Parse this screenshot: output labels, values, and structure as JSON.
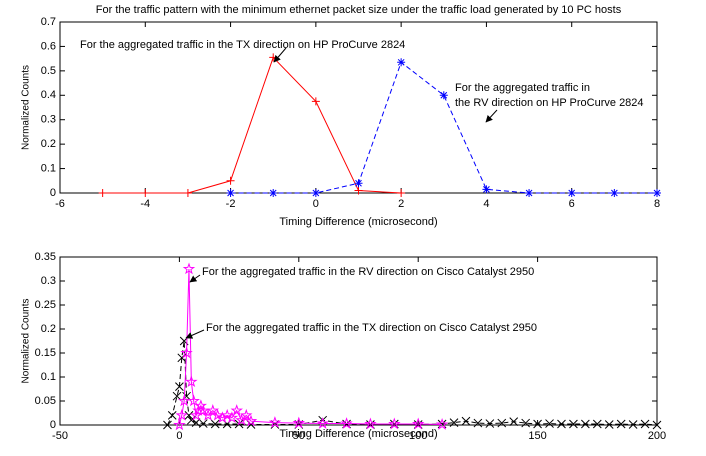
{
  "chart_data": [
    {
      "type": "line",
      "title": "For the traffic pattern with the minimum ethernet packet size under the traffic load generated by 10 PC hosts",
      "xlabel": "Timing Difference (microsecond)",
      "ylabel": "Normalized Counts",
      "xlim": [
        -6,
        8
      ],
      "xticks": [
        -6,
        -4,
        -2,
        0,
        2,
        4,
        6,
        8
      ],
      "ylim": [
        0,
        0.7
      ],
      "yticks": [
        0,
        0.1,
        0.2,
        0.3,
        0.4,
        0.5,
        0.6,
        0.7
      ],
      "grid": false,
      "annotations": [
        "For the aggregated traffic in the TX direction on HP ProCurve 2824",
        "For the aggregated traffic in",
        "the RV direction on HP ProCurve 2824"
      ],
      "series": [
        {
          "color": "#ff0000",
          "marker": "plus",
          "dashed": false,
          "x": [
            -5,
            -4,
            -3,
            -2,
            -1,
            0,
            1,
            2
          ],
          "values": [
            0,
            0,
            0,
            0.05,
            0.555,
            0.375,
            0.01,
            0
          ]
        },
        {
          "color": "#0000ff",
          "marker": "asterisk",
          "dashed": true,
          "x": [
            -2,
            -1,
            0,
            1,
            2,
            3,
            4,
            5,
            6,
            7,
            8
          ],
          "values": [
            0,
            0,
            0,
            0.04,
            0.535,
            0.4,
            0.015,
            0,
            0,
            0,
            0
          ]
        }
      ]
    },
    {
      "type": "line",
      "xlabel": "Timing Difference (microsecond)",
      "ylabel": "Normalized Counts",
      "xlim": [
        -50,
        200
      ],
      "xticks": [
        -50,
        0,
        50,
        100,
        150,
        200
      ],
      "ylim": [
        0,
        0.35
      ],
      "yticks": [
        0,
        0.05,
        0.1,
        0.15,
        0.2,
        0.25,
        0.3,
        0.35
      ],
      "grid": false,
      "annotations": [
        "For the aggregated traffic in the RV direction on Cisco Catalyst 2950",
        "For the aggregated traffic in the TX direction on Cisco Catalyst 2950"
      ],
      "series": [
        {
          "color": "#000000",
          "marker": "cross",
          "dashed": true,
          "x": [
            -5,
            -3,
            -1,
            0,
            1,
            2,
            3,
            4,
            5,
            7,
            10,
            15,
            20,
            25,
            30,
            40,
            50,
            60,
            70,
            80,
            90,
            100,
            110,
            115,
            120,
            125,
            130,
            135,
            140,
            145,
            150,
            155,
            160,
            165,
            170,
            175,
            180,
            185,
            190,
            195,
            200
          ],
          "values": [
            0,
            0.02,
            0.06,
            0.08,
            0.14,
            0.175,
            0.06,
            0.02,
            0.01,
            0.005,
            0.003,
            0.002,
            0.002,
            0.002,
            0.001,
            0.001,
            0.001,
            0.01,
            0.002,
            0.001,
            0.002,
            0.001,
            0.002,
            0.005,
            0.008,
            0.004,
            0.003,
            0.004,
            0.007,
            0.004,
            0.002,
            0.003,
            0.002,
            0.002,
            0.002,
            0.002,
            0.001,
            0.002,
            0.001,
            0.002,
            0
          ]
        },
        {
          "color": "#ff00ff",
          "marker": "star",
          "dashed": false,
          "x": [
            0,
            1,
            2,
            3,
            4,
            5,
            6,
            7,
            8,
            9,
            10,
            12,
            14,
            16,
            18,
            20,
            22,
            24,
            26,
            28,
            30,
            40,
            50,
            60,
            70,
            80,
            90,
            100,
            110
          ],
          "values": [
            0,
            0.02,
            0.05,
            0.15,
            0.325,
            0.09,
            0.05,
            0.02,
            0.03,
            0.04,
            0.03,
            0.02,
            0.03,
            0.02,
            0.015,
            0.02,
            0.015,
            0.03,
            0.01,
            0.02,
            0.008,
            0.005,
            0.004,
            0.003,
            0.003,
            0.002,
            0.002,
            0.002,
            0.001
          ]
        }
      ]
    }
  ]
}
